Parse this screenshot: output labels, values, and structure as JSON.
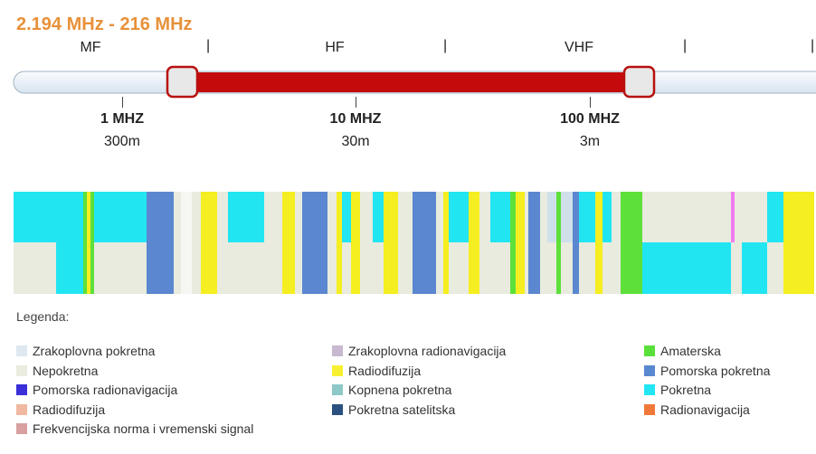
{
  "header": {
    "title": "2.194 MHz - 216 MHz"
  },
  "bands": [
    "MF",
    "HF",
    "VHF"
  ],
  "scale": [
    {
      "freq": "1 MHZ",
      "wave": "300m"
    },
    {
      "freq": "10 MHZ",
      "wave": "30m"
    },
    {
      "freq": "100 MHZ",
      "wave": "3m"
    }
  ],
  "legend": {
    "title": "Legenda:",
    "columns": [
      [
        {
          "label": "Zrakoplovna pokretna",
          "color": "#dde8f0"
        },
        {
          "label": "Nepokretna",
          "color": "#ebece0"
        },
        {
          "label": "Pomorska radionavigacija",
          "color": "#3a2fd8"
        },
        {
          "label": "Radiodifuzija",
          "color": "#f0b8a0"
        },
        {
          "label": "Frekvencijska norma i vremenski signal",
          "color": "#d8a0a0"
        }
      ],
      [
        {
          "label": "Zrakoplovna radionavigacija",
          "color": "#c8b8d0"
        },
        {
          "label": "Radiodifuzija",
          "color": "#f8f030"
        },
        {
          "label": "Kopnena pokretna",
          "color": "#8ec8c8"
        },
        {
          "label": "Pokretna satelitska",
          "color": "#2a5080"
        }
      ],
      [
        {
          "label": "Amaterska",
          "color": "#5ae03a"
        },
        {
          "label": "Pomorska pokretna",
          "color": "#5a88d0"
        },
        {
          "label": "Pokretna",
          "color": "#22e6f4"
        },
        {
          "label": "Radionavigacija",
          "color": "#f07838"
        }
      ]
    ]
  }
}
